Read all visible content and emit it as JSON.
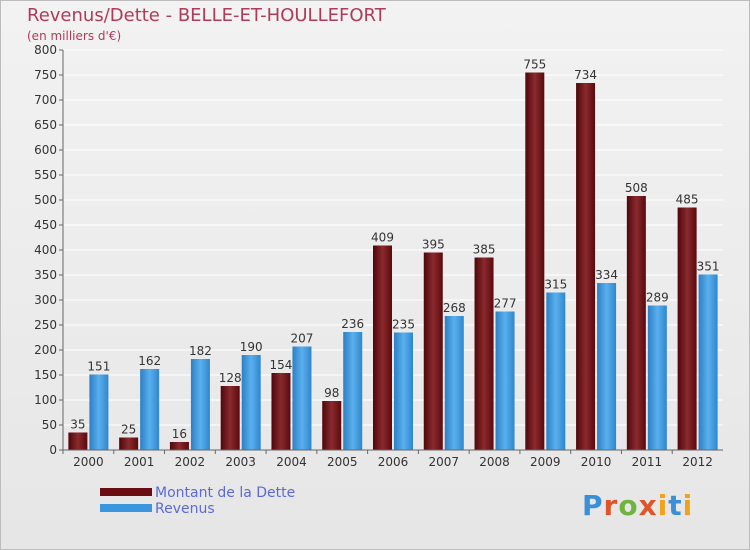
{
  "header": {
    "title": "Revenus/Dette - BELLE-ET-HOULLEFORT",
    "subtitle": "(en milliers d'€)"
  },
  "legend": {
    "items": [
      {
        "label": "Montant de la Dette",
        "color": "#6b0d10"
      },
      {
        "label": "Revenus",
        "color": "#3b97dd"
      }
    ]
  },
  "logo": {
    "text": "Proxiti"
  },
  "chart_data": {
    "type": "bar",
    "title": "Revenus/Dette - BELLE-ET-HOULLEFORT",
    "ylabel": "(en milliers d'€)",
    "xlabel": "",
    "categories": [
      "2000",
      "2001",
      "2002",
      "2003",
      "2004",
      "2005",
      "2006",
      "2007",
      "2008",
      "2009",
      "2010",
      "2011",
      "2012"
    ],
    "series": [
      {
        "name": "Montant de la Dette",
        "color": "#6b0d10",
        "values": [
          35,
          25,
          16,
          128,
          154,
          98,
          409,
          395,
          385,
          755,
          734,
          508,
          485
        ]
      },
      {
        "name": "Revenus",
        "color": "#3b97dd",
        "values": [
          151,
          162,
          182,
          190,
          207,
          236,
          235,
          268,
          277,
          315,
          334,
          289,
          351
        ]
      }
    ],
    "ylim": [
      0,
      800
    ],
    "yticks": [
      0,
      50,
      100,
      150,
      200,
      250,
      300,
      350,
      400,
      450,
      500,
      550,
      600,
      650,
      700,
      750,
      800
    ],
    "grid": true,
    "legend_position": "bottom-left"
  }
}
